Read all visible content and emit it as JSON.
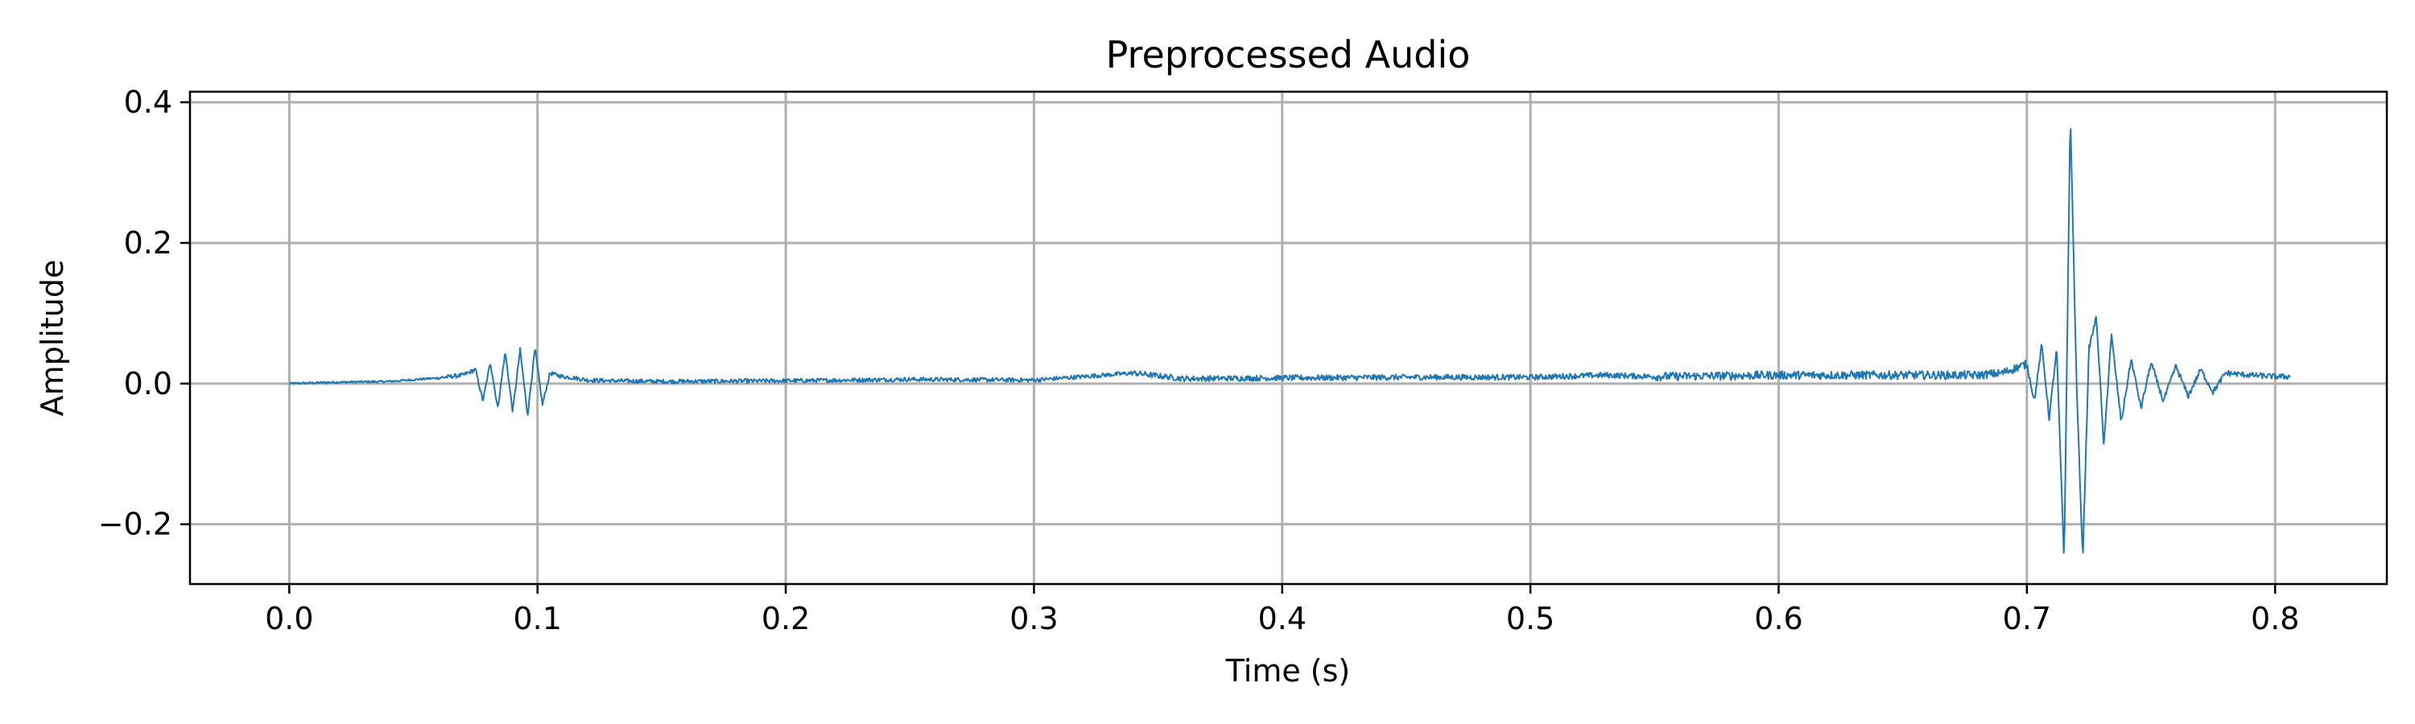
{
  "chart_data": {
    "type": "line",
    "title": "Preprocessed Audio",
    "xlabel": "Time (s)",
    "ylabel": "Amplitude",
    "xlim": [
      -0.04,
      0.845
    ],
    "ylim": [
      -0.285,
      0.415
    ],
    "x_ticks": [
      0.0,
      0.1,
      0.2,
      0.3,
      0.4,
      0.5,
      0.6,
      0.7,
      0.8
    ],
    "x_tick_labels": [
      "0.0",
      "0.1",
      "0.2",
      "0.3",
      "0.4",
      "0.5",
      "0.6",
      "0.7",
      "0.8"
    ],
    "y_ticks": [
      -0.2,
      0.0,
      0.2,
      0.4
    ],
    "y_tick_labels": [
      "−0.2",
      "0.0",
      "0.2",
      "0.4"
    ],
    "grid": true,
    "legend": "none",
    "line_color": "#1f77b4",
    "series": [
      {
        "x_start": 0.0,
        "x_end": 0.806,
        "x": [
          0.0,
          0.02,
          0.04,
          0.06,
          0.07,
          0.075,
          0.078,
          0.081,
          0.084,
          0.087,
          0.09,
          0.093,
          0.096,
          0.099,
          0.102,
          0.105,
          0.11,
          0.115,
          0.12,
          0.13,
          0.15,
          0.2,
          0.25,
          0.3,
          0.34,
          0.36,
          0.4,
          0.45,
          0.5,
          0.53,
          0.55,
          0.6,
          0.62,
          0.65,
          0.68,
          0.69,
          0.7,
          0.703,
          0.706,
          0.709,
          0.712,
          0.715,
          0.7175,
          0.72,
          0.7225,
          0.725,
          0.728,
          0.731,
          0.734,
          0.738,
          0.742,
          0.746,
          0.75,
          0.755,
          0.76,
          0.765,
          0.77,
          0.775,
          0.78,
          0.79,
          0.8,
          0.806
        ],
        "y": [
          0.0,
          0.002,
          0.003,
          0.008,
          0.012,
          0.02,
          -0.025,
          0.03,
          -0.035,
          0.045,
          -0.04,
          0.048,
          -0.045,
          0.05,
          -0.03,
          0.015,
          0.01,
          0.008,
          0.005,
          0.004,
          0.003,
          0.004,
          0.006,
          0.005,
          0.015,
          0.007,
          0.008,
          0.009,
          0.009,
          0.012,
          0.01,
          0.012,
          0.012,
          0.012,
          0.012,
          0.015,
          0.028,
          -0.025,
          0.055,
          -0.05,
          0.05,
          -0.255,
          0.385,
          0.0,
          -0.25,
          0.05,
          0.095,
          -0.09,
          0.07,
          -0.055,
          0.035,
          -0.035,
          0.03,
          -0.025,
          0.025,
          -0.018,
          0.02,
          -0.012,
          0.015,
          0.012,
          0.01,
          0.01
        ]
      }
    ]
  }
}
